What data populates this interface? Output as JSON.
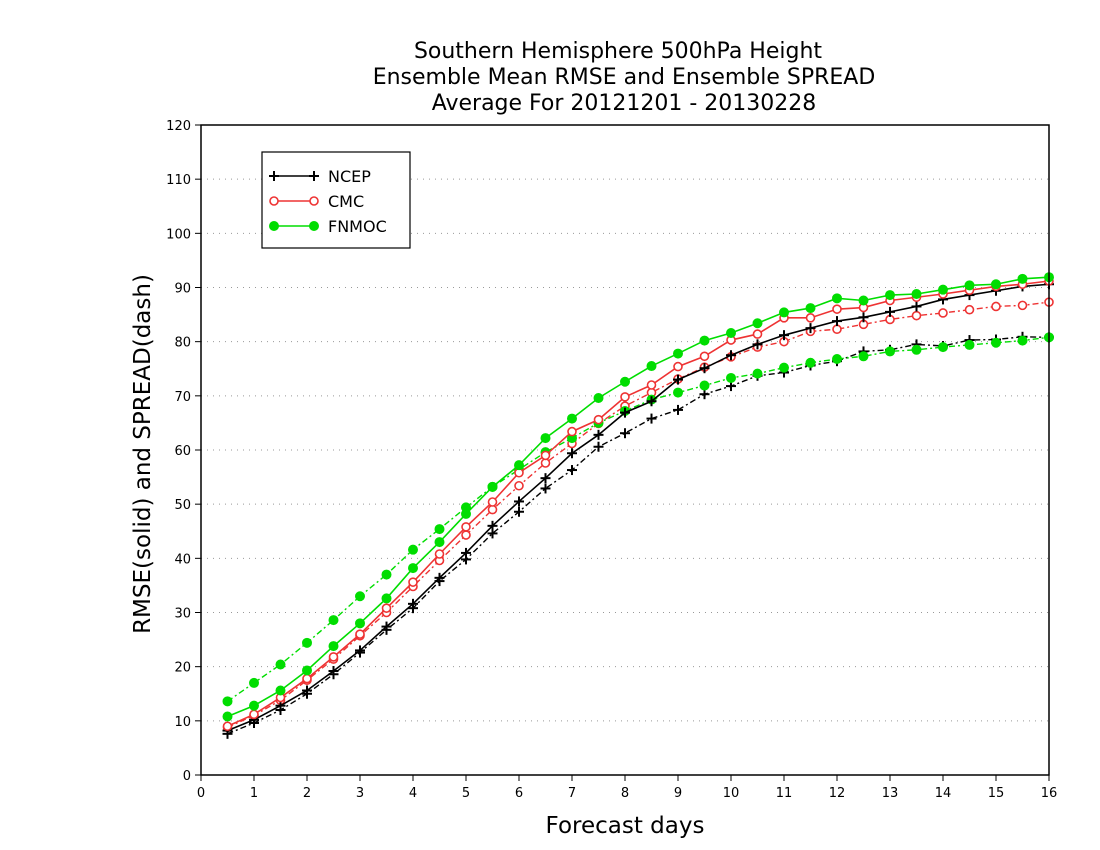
{
  "chart_data": {
    "type": "line",
    "title": [
      "Southern Hemisphere 500hPa Height",
      "Ensemble Mean RMSE and Ensemble SPREAD",
      "Average For 20121201 - 20130228"
    ],
    "xlabel": "Forecast days",
    "ylabel": "RMSE(solid) and SPREAD(dash)",
    "xlim": [
      0,
      16
    ],
    "ylim": [
      0,
      120
    ],
    "xticks": [
      "0",
      "1",
      "2",
      "3",
      "4",
      "5",
      "6",
      "7",
      "8",
      "9",
      "10",
      "11",
      "12",
      "13",
      "14",
      "15",
      "16"
    ],
    "yticks": [
      "0",
      "10",
      "20",
      "30",
      "40",
      "50",
      "60",
      "70",
      "80",
      "90",
      "100",
      "110",
      "120"
    ],
    "grid": true,
    "legend_position": "top-left",
    "x": [
      0.5,
      1,
      1.5,
      2,
      2.5,
      3,
      3.5,
      4,
      4.5,
      5,
      5.5,
      6,
      6.5,
      7,
      7.5,
      8,
      8.5,
      9,
      9.5,
      10,
      10.5,
      11,
      11.5,
      12,
      12.5,
      13,
      13.5,
      14,
      14.5,
      15,
      15.5,
      16
    ],
    "series": [
      {
        "name": "NCEP",
        "color": "#000000",
        "marker": "plus",
        "rmse": [
          8.2,
          10.2,
          12.8,
          15.6,
          19.2,
          23.0,
          27.4,
          31.6,
          36.4,
          41.0,
          46.0,
          50.5,
          54.8,
          59.4,
          62.8,
          66.9,
          69.0,
          73.0,
          75.1,
          77.5,
          79.5,
          81.2,
          82.5,
          83.8,
          84.5,
          85.5,
          86.5,
          87.8,
          88.6,
          89.4,
          90.2,
          90.6
        ],
        "spread": [
          7.6,
          9.6,
          12.0,
          15.0,
          18.6,
          22.6,
          26.8,
          30.8,
          35.8,
          39.8,
          44.6,
          48.6,
          52.9,
          56.3,
          60.6,
          63.1,
          65.8,
          67.4,
          70.3,
          71.8,
          73.7,
          74.3,
          75.6,
          76.4,
          78.2,
          78.5,
          79.5,
          79.2,
          80.3,
          80.4,
          80.9,
          80.8
        ]
      },
      {
        "name": "CMC",
        "color": "#ee3333",
        "marker": "circle",
        "rmse": [
          9.0,
          11.2,
          14.3,
          17.8,
          21.8,
          26.0,
          30.8,
          35.6,
          40.8,
          45.8,
          50.4,
          55.8,
          59.0,
          63.4,
          65.6,
          69.8,
          72.0,
          75.4,
          77.3,
          80.3,
          81.4,
          84.4,
          84.4,
          86.0,
          86.3,
          87.6,
          88.2,
          88.8,
          89.5,
          90.2,
          90.6,
          91.2
        ],
        "spread": [
          8.8,
          11.0,
          13.8,
          17.5,
          21.4,
          25.7,
          30.0,
          34.8,
          39.6,
          44.3,
          49.0,
          53.4,
          57.6,
          61.2,
          64.9,
          68.1,
          70.6,
          73.1,
          75.3,
          77.2,
          79.0,
          80.0,
          81.9,
          82.3,
          83.2,
          84.1,
          84.8,
          85.3,
          85.9,
          86.5,
          86.7,
          87.3
        ]
      },
      {
        "name": "FNMOC",
        "color": "#00dd00",
        "marker": "dot",
        "rmse": [
          10.8,
          12.8,
          15.6,
          19.3,
          23.8,
          28.0,
          32.6,
          38.2,
          43.0,
          48.2,
          53.2,
          57.2,
          62.2,
          65.8,
          69.6,
          72.6,
          75.5,
          77.8,
          80.2,
          81.6,
          83.4,
          85.4,
          86.2,
          88.0,
          87.6,
          88.6,
          88.8,
          89.6,
          90.4,
          90.6,
          91.6,
          91.9
        ],
        "spread": [
          13.6,
          17.0,
          20.4,
          24.4,
          28.6,
          33.0,
          37.0,
          41.6,
          45.4,
          49.4,
          53.2,
          56.4,
          59.6,
          62.2,
          65.0,
          67.2,
          69.3,
          70.6,
          71.9,
          73.3,
          74.1,
          75.2,
          76.1,
          76.8,
          77.3,
          78.2,
          78.5,
          79.0,
          79.4,
          79.8,
          80.2,
          80.8
        ]
      }
    ]
  }
}
